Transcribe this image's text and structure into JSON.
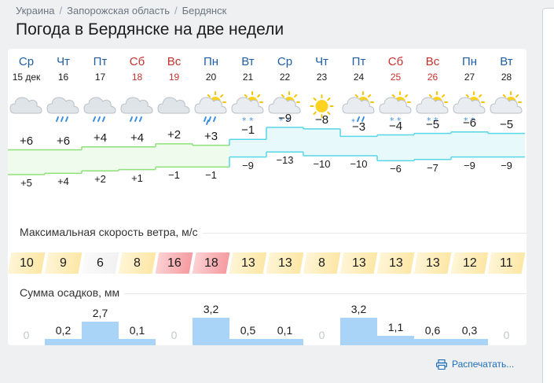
{
  "breadcrumb": [
    "Украина",
    "Запорожская область",
    "Бердянск"
  ],
  "title": "Погода в Бердянске на две недели",
  "days": [
    {
      "dow": "Ср",
      "date": "15 дек",
      "weekend": false,
      "icon": "cloudy",
      "tmax": "+6",
      "tmin": "+5",
      "wind": "10",
      "precip": "0"
    },
    {
      "dow": "Чт",
      "date": "16",
      "weekend": false,
      "icon": "cloudy-rain",
      "tmax": "+6",
      "tmin": "+4",
      "wind": "9",
      "precip": "0,2"
    },
    {
      "dow": "Пт",
      "date": "17",
      "weekend": false,
      "icon": "cloudy-rain",
      "tmax": "+4",
      "tmin": "+2",
      "wind": "6",
      "precip": "2,7"
    },
    {
      "dow": "Сб",
      "date": "18",
      "weekend": true,
      "icon": "cloudy-rain",
      "tmax": "+4",
      "tmin": "+1",
      "wind": "8",
      "precip": "0,1"
    },
    {
      "dow": "Вс",
      "date": "19",
      "weekend": true,
      "icon": "cloudy",
      "tmax": "+2",
      "tmin": "−1",
      "wind": "16",
      "precip": "0"
    },
    {
      "dow": "Пн",
      "date": "20",
      "weekend": false,
      "icon": "partly-cloudy-rain",
      "tmax": "+3",
      "tmin": "−1",
      "wind": "18",
      "precip": "3,2"
    },
    {
      "dow": "Вт",
      "date": "21",
      "weekend": false,
      "icon": "partly-cloudy-snow",
      "tmax": "−1",
      "tmin": "−9",
      "wind": "13",
      "precip": "0,5"
    },
    {
      "dow": "Ср",
      "date": "22",
      "weekend": false,
      "icon": "partly-cloudy-snow",
      "tmax": "−9",
      "tmin": "−13",
      "wind": "13",
      "precip": "0,1"
    },
    {
      "dow": "Чт",
      "date": "23",
      "weekend": false,
      "icon": "sunny",
      "tmax": "−8",
      "tmin": "−10",
      "wind": "8",
      "precip": "0"
    },
    {
      "dow": "Пт",
      "date": "24",
      "weekend": false,
      "icon": "partly-cloudy-sleet",
      "tmax": "−3",
      "tmin": "−10",
      "wind": "13",
      "precip": "3,2"
    },
    {
      "dow": "Сб",
      "date": "25",
      "weekend": true,
      "icon": "partly-cloudy-snow",
      "tmax": "−4",
      "tmin": "−6",
      "wind": "13",
      "precip": "1,1"
    },
    {
      "dow": "Вс",
      "date": "26",
      "weekend": true,
      "icon": "partly-cloudy-snow",
      "tmax": "−5",
      "tmin": "−7",
      "wind": "13",
      "precip": "0,6"
    },
    {
      "dow": "Пн",
      "date": "27",
      "weekend": false,
      "icon": "partly-cloudy-snow",
      "tmax": "−6",
      "tmin": "−9",
      "wind": "12",
      "precip": "0,3"
    },
    {
      "dow": "Вт",
      "date": "28",
      "weekend": false,
      "icon": "partly-cloudy",
      "tmax": "−5",
      "tmin": "−9",
      "wind": "11",
      "precip": "0"
    }
  ],
  "temperature": {
    "max": [
      6,
      6,
      4,
      4,
      2,
      3,
      -1,
      -9,
      -8,
      -3,
      -4,
      -5,
      -6,
      -5
    ],
    "min": [
      5,
      4,
      2,
      1,
      -1,
      -1,
      -9,
      -13,
      -10,
      -10,
      -6,
      -7,
      -9,
      -9
    ],
    "warm_color": "#8fe07a",
    "cold_color": "#56d6e6"
  },
  "wind_section": {
    "label": "Максимальная скорость ветра, м/с",
    "values": [
      10,
      9,
      6,
      8,
      16,
      18,
      13,
      13,
      8,
      13,
      13,
      13,
      12,
      11
    ],
    "colors": {
      "low": "#f2f2f2",
      "mid": "#fde7a6",
      "high": "#f59ba0"
    }
  },
  "precip_section": {
    "label": "Сумма осадков, мм",
    "values": [
      0,
      0.2,
      2.7,
      0.1,
      0,
      3.2,
      0.5,
      0.1,
      0,
      3.2,
      1.1,
      0.6,
      0.3,
      0
    ],
    "color": "#a9d4f7"
  },
  "print_label": "Распечатать..."
}
